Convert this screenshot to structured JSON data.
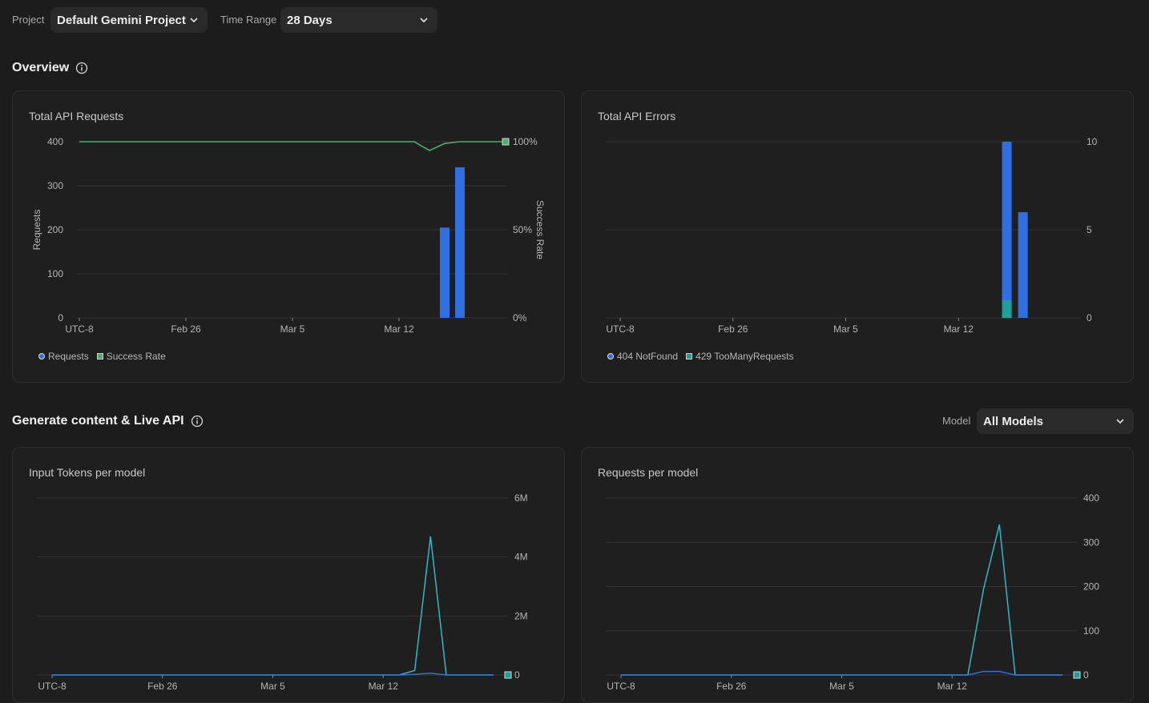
{
  "filters": {
    "project_label": "Project",
    "project_value": "Default Gemini Project",
    "time_range_label": "Time Range",
    "time_range_value": "28 Days"
  },
  "overview": {
    "title": "Overview"
  },
  "gen_section": {
    "title": "Generate content & Live API",
    "model_label": "Model",
    "model_value": "All Models"
  },
  "colors": {
    "blue": "#2f6fe0",
    "green": "#4caf6a",
    "teal": "#1f9e9e",
    "cyan": "#35b5c5",
    "grid": "#333333"
  },
  "chart_data": [
    {
      "id": "requests",
      "type": "bar",
      "title": "Total API Requests",
      "ylabel": "Requests",
      "y2label": "Success Rate",
      "ylim": [
        0,
        400
      ],
      "yticks": [
        "400",
        "300",
        "200",
        "100",
        "0"
      ],
      "y2ticks": [
        "100%",
        "50%",
        "0%"
      ],
      "xticks": [
        "UTC-8",
        "Feb 26",
        "Mar 5",
        "Mar 12"
      ],
      "bars": [
        {
          "day": 24,
          "value": 205
        },
        {
          "day": 25,
          "value": 342
        }
      ],
      "success_rate": [
        {
          "day": 0,
          "value": 100
        },
        {
          "day": 22,
          "value": 100
        },
        {
          "day": 23,
          "value": 95
        },
        {
          "day": 24,
          "value": 99
        },
        {
          "day": 25,
          "value": 100
        },
        {
          "day": 28,
          "value": 100
        }
      ],
      "legend": [
        "Requests",
        "Success Rate"
      ]
    },
    {
      "id": "errors",
      "type": "bar",
      "title": "Total API Errors",
      "ylim": [
        0,
        10
      ],
      "yticks": [
        "10",
        "5",
        "0"
      ],
      "xticks": [
        "UTC-8",
        "Feb 26",
        "Mar 5",
        "Mar 12"
      ],
      "stacks": [
        {
          "day": 24,
          "not_found": 9,
          "too_many": 1
        },
        {
          "day": 25,
          "not_found": 6,
          "too_many": 0
        }
      ],
      "legend": [
        "404 NotFound",
        "429 TooManyRequests"
      ]
    },
    {
      "id": "input_tokens",
      "type": "line",
      "title": "Input Tokens per model",
      "ylim": [
        0,
        6000000
      ],
      "yticks": [
        "6M",
        "4M",
        "2M",
        "0"
      ],
      "xticks": [
        "UTC-8",
        "Feb 26",
        "Mar 5",
        "Mar 12"
      ],
      "series": [
        {
          "color": "cyan",
          "points": [
            [
              0,
              0
            ],
            [
              22,
              0
            ],
            [
              23,
              150000
            ],
            [
              24,
              4700000
            ],
            [
              25,
              0
            ],
            [
              28,
              0
            ]
          ]
        },
        {
          "color": "blue",
          "points": [
            [
              0,
              0
            ],
            [
              22,
              0
            ],
            [
              23,
              20000
            ],
            [
              24,
              60000
            ],
            [
              25,
              0
            ],
            [
              28,
              0
            ]
          ]
        }
      ]
    },
    {
      "id": "requests_per_model",
      "type": "line",
      "title": "Requests per model",
      "ylim": [
        0,
        400
      ],
      "yticks": [
        "400",
        "300",
        "200",
        "100",
        "0"
      ],
      "xticks": [
        "UTC-8",
        "Feb 26",
        "Mar 5",
        "Mar 12"
      ],
      "series": [
        {
          "color": "cyan",
          "points": [
            [
              0,
              0
            ],
            [
              22,
              0
            ],
            [
              23,
              195
            ],
            [
              24,
              340
            ],
            [
              25,
              0
            ],
            [
              28,
              0
            ]
          ]
        },
        {
          "color": "blue",
          "points": [
            [
              0,
              0
            ],
            [
              22,
              0
            ],
            [
              23,
              8
            ],
            [
              24,
              8
            ],
            [
              25,
              0
            ],
            [
              28,
              0
            ]
          ]
        }
      ]
    }
  ]
}
